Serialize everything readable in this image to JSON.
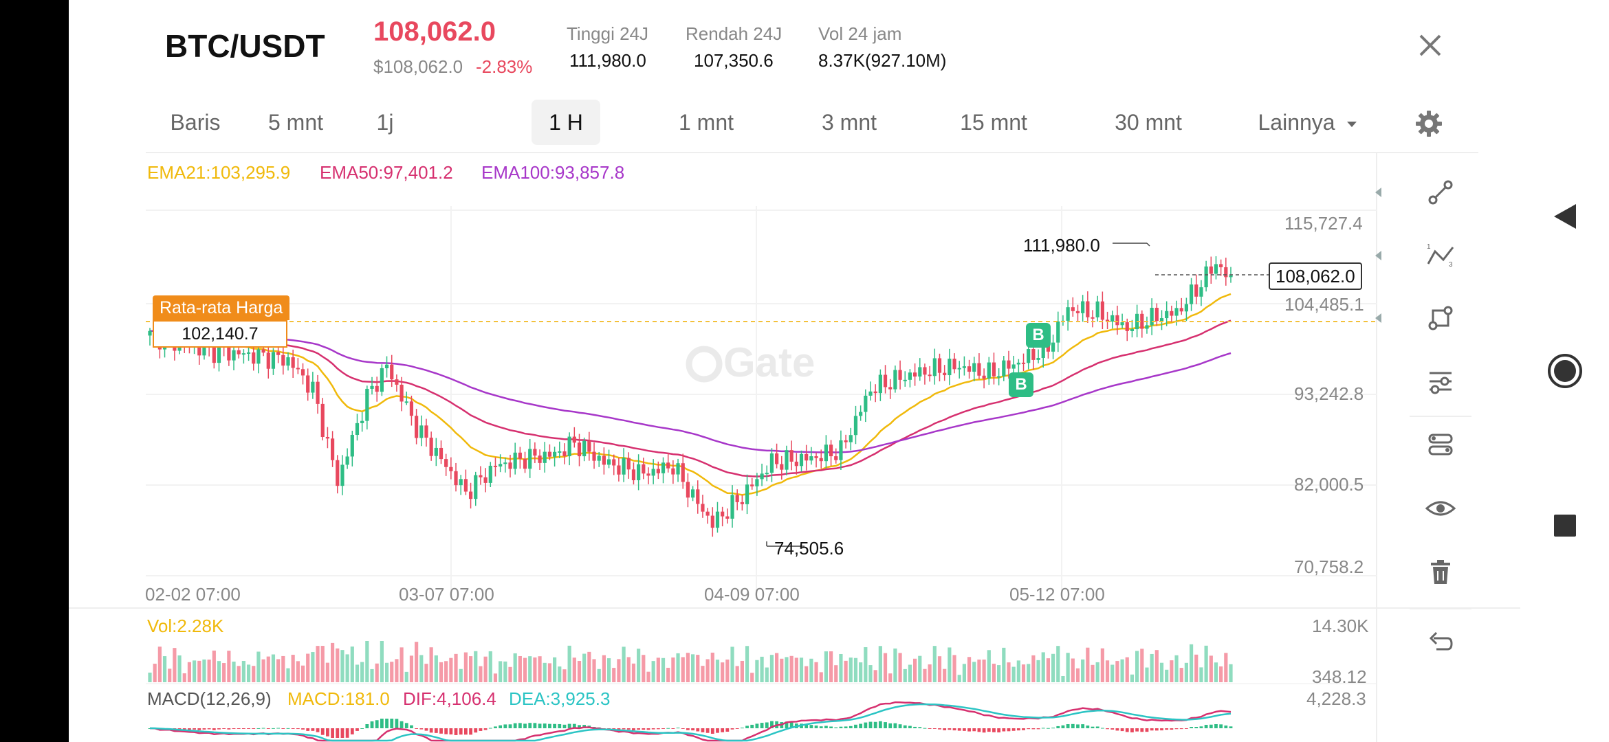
{
  "header": {
    "pair": "BTC/USDT",
    "last_price": "108,062.0",
    "usd_price": "$108,062.0",
    "change": "-2.83%",
    "stats": [
      {
        "label": "Tinggi 24J",
        "value": "111,980.0"
      },
      {
        "label": "Rendah 24J",
        "value": "107,350.6"
      },
      {
        "label": "Vol 24 jam",
        "value": "8.37K(927.10M)"
      }
    ]
  },
  "tabs": [
    {
      "label": "Baris",
      "active": false
    },
    {
      "label": "5 mnt",
      "active": false
    },
    {
      "label": "1j",
      "active": false
    },
    {
      "label": "1 H",
      "active": true
    },
    {
      "label": "1 mnt",
      "active": false
    },
    {
      "label": "3 mnt",
      "active": false
    },
    {
      "label": "15 mnt",
      "active": false
    },
    {
      "label": "30 mnt",
      "active": false
    }
  ],
  "more_tab": "Lainnya",
  "indicators": {
    "ema21": "EMA21:103,295.9",
    "ema50": "EMA50:97,401.2",
    "ema100": "EMA100:93,857.8",
    "volume": "Vol:2.28K",
    "macd_name": "MACD(12,26,9)",
    "macd": "MACD:181.0",
    "dif": "DIF:4,106.4",
    "dea": "DEA:3,925.3"
  },
  "colors": {
    "up": "#2ebd85",
    "down": "#e8485e",
    "ema21": "#f0b90b",
    "ema50": "#d6306f",
    "ema100": "#a737c9",
    "avg": "#f08c1a",
    "dea": "#2bc4c4"
  },
  "chart": {
    "y_labels": [
      "115,727.4",
      "104,485.1",
      "93,242.8",
      "82,000.5",
      "70,758.2"
    ],
    "x_labels": [
      "02-02 07:00",
      "03-07 07:00",
      "04-09 07:00",
      "05-12 07:00"
    ],
    "high_label": "111,980.0",
    "low_label": "74,505.6",
    "current_price": "108,062.0",
    "avg_title": "Rata-rata Harga",
    "avg_value": "102,140.7",
    "marker": "B",
    "watermark": "Gate",
    "vol_axis": [
      "14.30K",
      "348.12"
    ],
    "macd_axis": [
      "4,228.3"
    ]
  },
  "tools": [
    "line-tool-icon",
    "trend-numbers-icon",
    "shape-tool-icon",
    "indicator-settings-icon",
    "indicator-layout-icon",
    "visibility-icon",
    "delete-icon",
    "undo-icon"
  ]
}
